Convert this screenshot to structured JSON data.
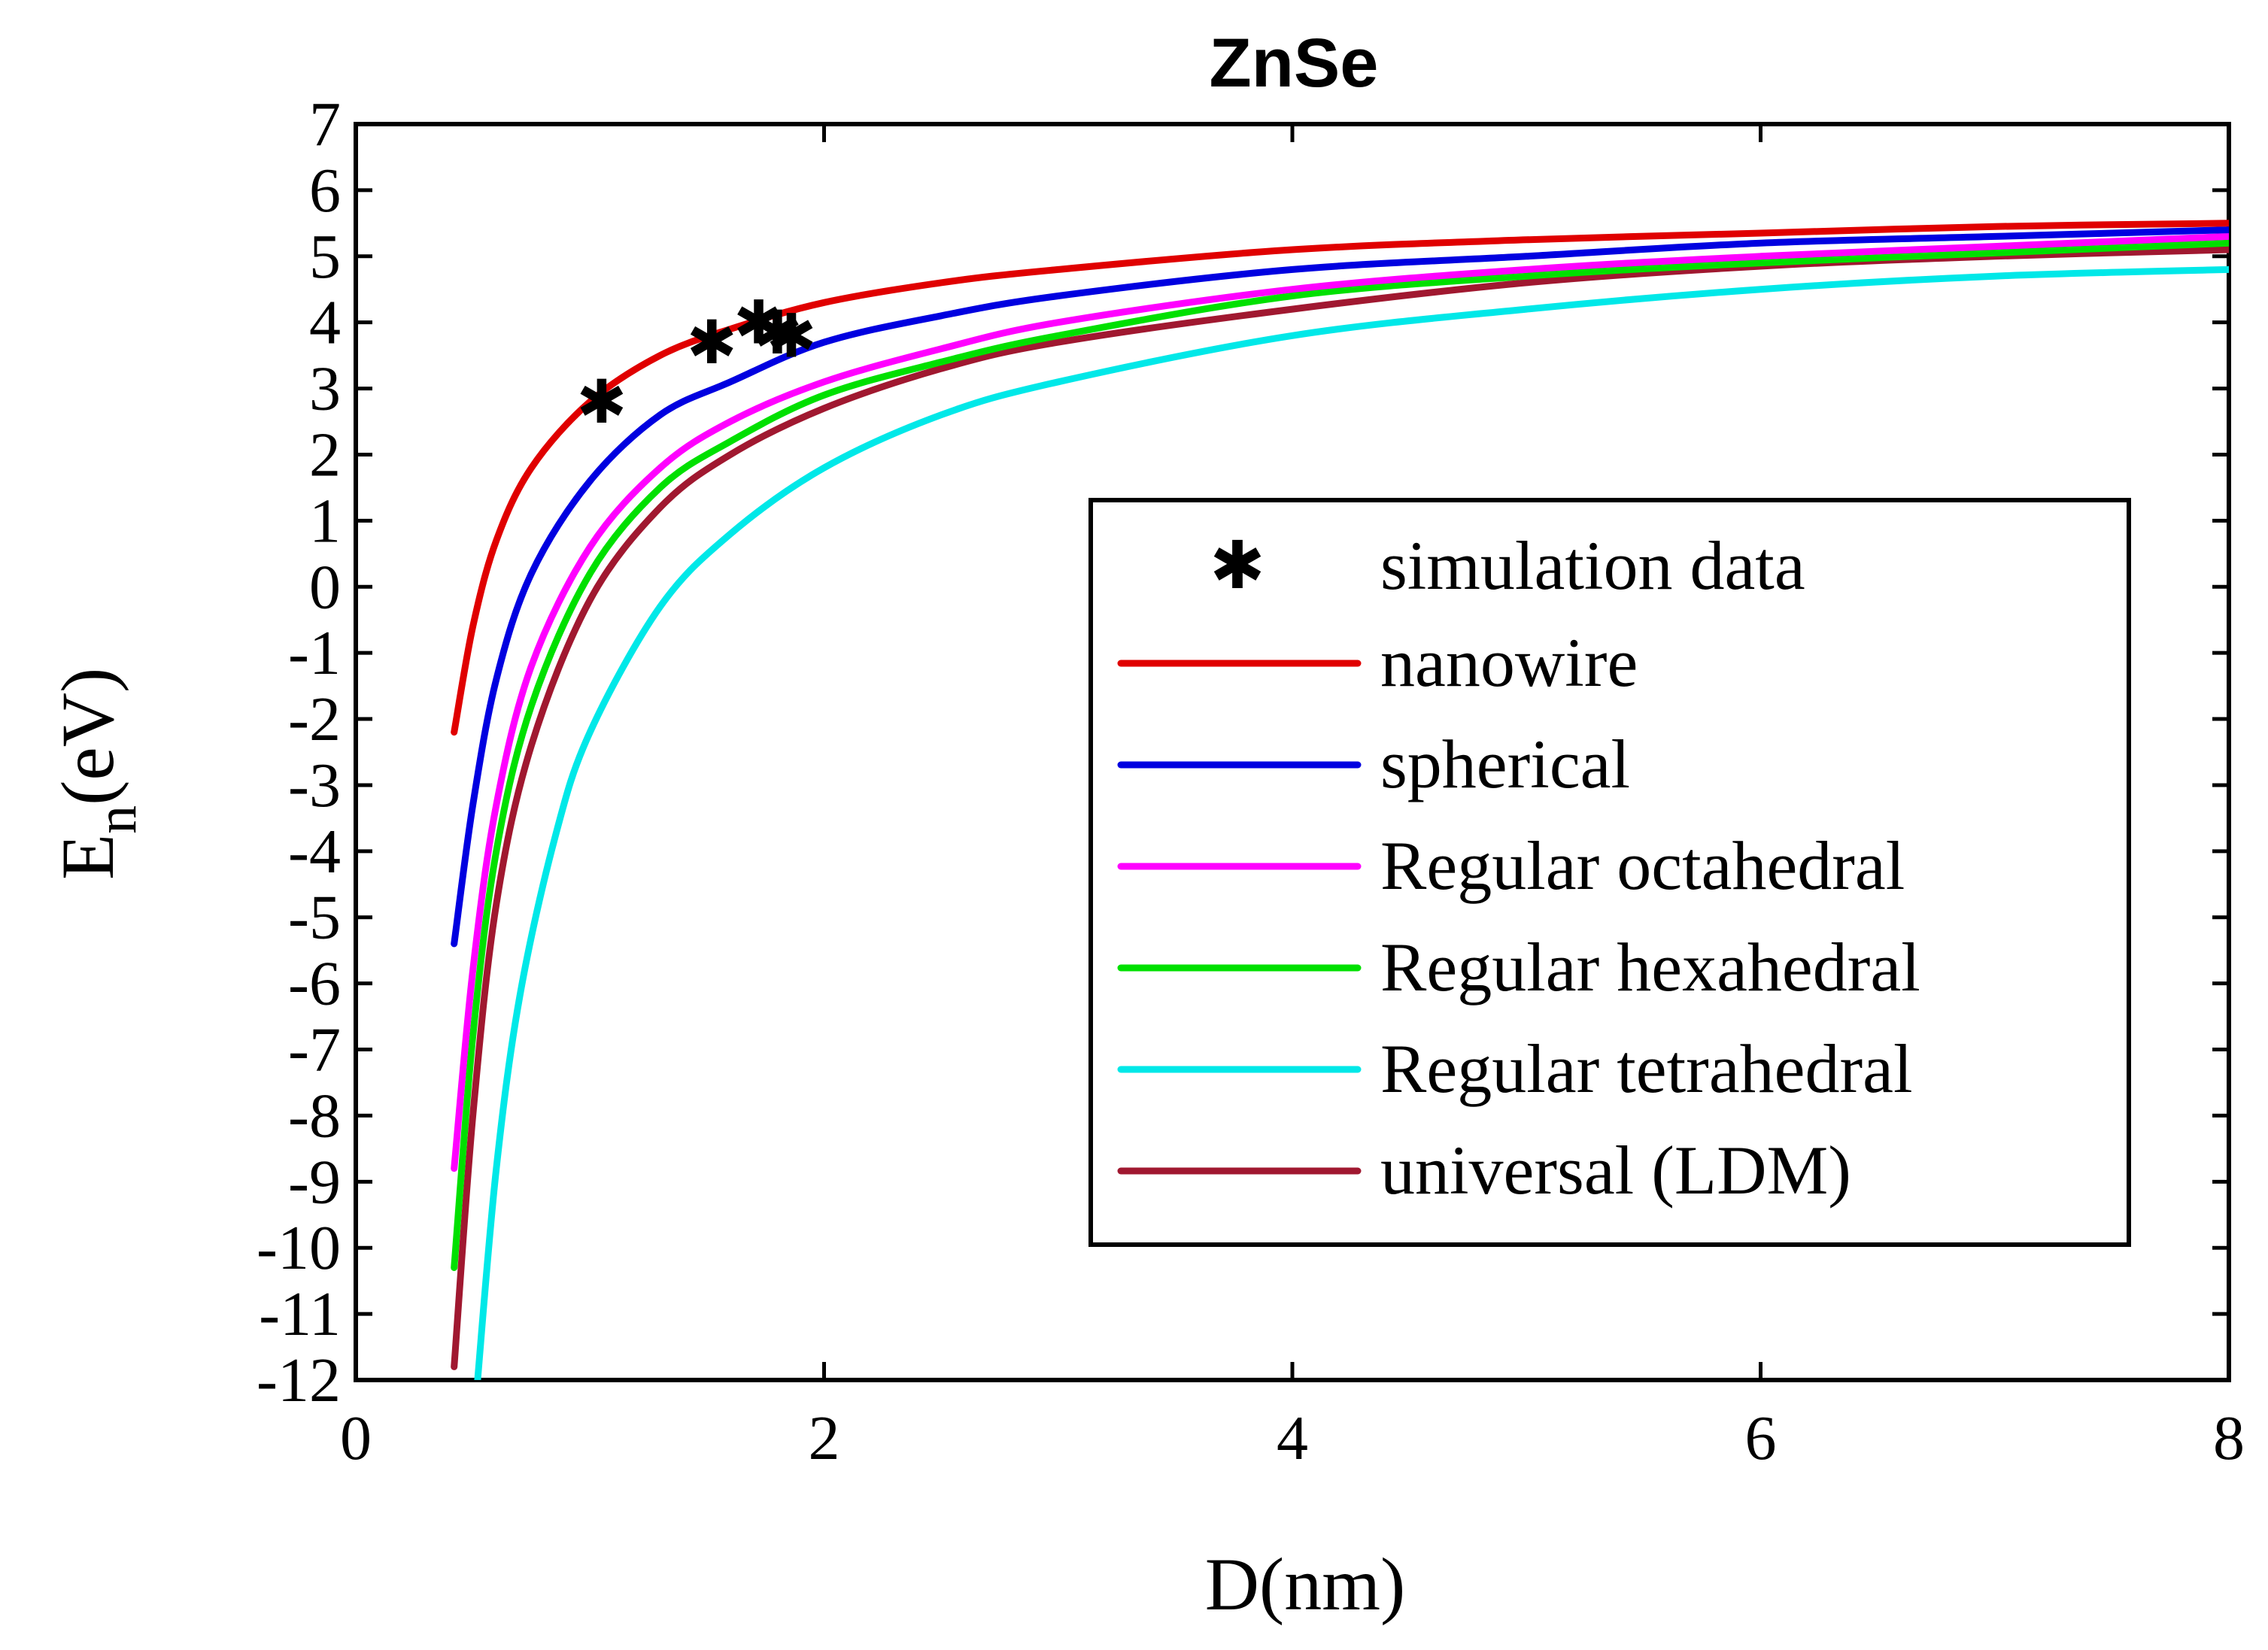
{
  "chart_data": {
    "type": "line",
    "title": "ZnSe",
    "xlabel": "D(nm)",
    "ylabel_main": "E",
    "ylabel_sub": "n",
    "ylabel_unit": "(eV)",
    "xlim": [
      0,
      8
    ],
    "ylim": [
      -12,
      7
    ],
    "xticks": [
      "0",
      "2",
      "4",
      "6",
      "8"
    ],
    "yticks": [
      "7",
      "6",
      "5",
      "4",
      "3",
      "2",
      "1",
      "0",
      "-1",
      "-2",
      "-3",
      "-4",
      "-5",
      "-6",
      "-7",
      "-8",
      "-9",
      "-10",
      "-11",
      "-12"
    ],
    "grid": false,
    "legend_position": "center-right",
    "scatter": {
      "name": "simulation data",
      "color": "#000000",
      "points": [
        [
          1.05,
          2.8
        ],
        [
          1.52,
          3.7
        ],
        [
          1.72,
          4.0
        ],
        [
          1.8,
          3.85
        ],
        [
          1.86,
          3.8
        ]
      ]
    },
    "series": [
      {
        "name": "nanowire",
        "color": "#e00000",
        "x": [
          0.42,
          0.5,
          0.6,
          0.75,
          1.0,
          1.3,
          1.6,
          2.0,
          2.5,
          3.0,
          4.0,
          5.0,
          6.0,
          7.0,
          8.0
        ],
        "y": [
          -2.2,
          -0.6,
          0.7,
          1.8,
          2.8,
          3.5,
          3.9,
          4.3,
          4.6,
          4.8,
          5.1,
          5.25,
          5.35,
          5.45,
          5.5
        ]
      },
      {
        "name": "spherical",
        "color": "#0000e0",
        "x": [
          0.42,
          0.5,
          0.6,
          0.75,
          1.0,
          1.3,
          1.6,
          2.0,
          2.5,
          3.0,
          4.0,
          5.0,
          6.0,
          7.0,
          8.0
        ],
        "y": [
          -5.4,
          -3.3,
          -1.4,
          0.2,
          1.6,
          2.6,
          3.1,
          3.7,
          4.1,
          4.4,
          4.8,
          5.0,
          5.2,
          5.3,
          5.4
        ]
      },
      {
        "name": "Regular octahedral",
        "color": "#ff00ff",
        "x": [
          0.42,
          0.5,
          0.6,
          0.75,
          1.0,
          1.3,
          1.6,
          2.0,
          2.5,
          3.0,
          4.0,
          5.0,
          6.0,
          7.0,
          8.0
        ],
        "y": [
          -8.8,
          -5.8,
          -3.3,
          -1.2,
          0.6,
          1.8,
          2.5,
          3.1,
          3.6,
          4.0,
          4.5,
          4.8,
          5.0,
          5.15,
          5.3
        ]
      },
      {
        "name": "Regular hexahedral",
        "color": "#00e000",
        "x": [
          0.42,
          0.5,
          0.6,
          0.75,
          1.0,
          1.3,
          1.6,
          2.0,
          2.5,
          3.0,
          4.0,
          5.0,
          6.0,
          7.0,
          8.0
        ],
        "y": [
          -10.3,
          -6.8,
          -4.0,
          -1.8,
          0.2,
          1.5,
          2.2,
          2.9,
          3.4,
          3.8,
          4.4,
          4.7,
          4.9,
          5.05,
          5.2
        ]
      },
      {
        "name": "Regular tetrahedral",
        "color": "#00e8e8",
        "x": [
          0.52,
          0.6,
          0.7,
          0.85,
          1.0,
          1.3,
          1.6,
          2.0,
          2.5,
          3.0,
          4.0,
          5.0,
          6.0,
          7.0,
          8.0
        ],
        "y": [
          -12.0,
          -8.8,
          -6.2,
          -3.8,
          -2.2,
          -0.3,
          0.8,
          1.8,
          2.6,
          3.1,
          3.8,
          4.2,
          4.5,
          4.7,
          4.8
        ]
      },
      {
        "name": "universal (LDM)",
        "color": "#a01830",
        "x": [
          0.42,
          0.5,
          0.6,
          0.75,
          1.0,
          1.3,
          1.6,
          2.0,
          2.5,
          3.0,
          4.0,
          5.0,
          6.0,
          7.0,
          8.0
        ],
        "y": [
          -11.8,
          -8.0,
          -4.8,
          -2.4,
          -0.2,
          1.2,
          2.0,
          2.7,
          3.3,
          3.7,
          4.2,
          4.6,
          4.85,
          5.0,
          5.1
        ]
      }
    ]
  }
}
